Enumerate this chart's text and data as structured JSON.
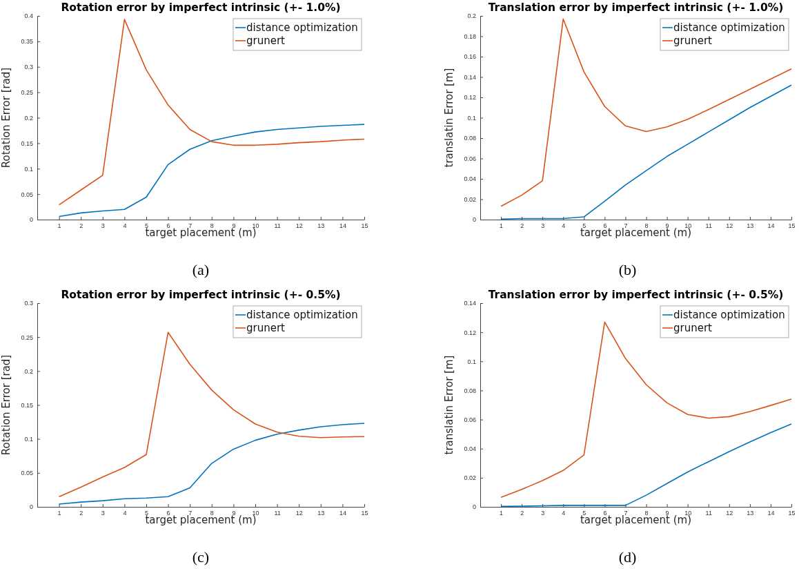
{
  "chart_data": [
    {
      "type": "line",
      "title": "Rotation error by imperfect intrinsic (+- 1.0%)",
      "xlabel": "target placement (m)",
      "ylabel": "Rotation Error [rad]",
      "annotations": [
        "(a)"
      ],
      "legend": "top right",
      "xlim": [
        0,
        15
      ],
      "xticks": [
        1,
        2,
        3,
        4,
        5,
        6,
        7,
        8,
        9,
        10,
        11,
        12,
        13,
        14,
        15
      ],
      "ylim": [
        0,
        0.4
      ],
      "yticks": [
        0,
        0.05,
        0.1,
        0.15,
        0.2,
        0.25,
        0.3,
        0.35,
        0.4
      ],
      "x": [
        1,
        2,
        3,
        4,
        5,
        6,
        7,
        8,
        9,
        10,
        11,
        12,
        13,
        14,
        15
      ],
      "series": [
        {
          "name": "distance optimization",
          "color": "#0072bd",
          "values": [
            0.006,
            0.013,
            0.017,
            0.02,
            0.044,
            0.108,
            0.138,
            0.155,
            0.164,
            0.172,
            0.177,
            0.18,
            0.183,
            0.185,
            0.187
          ]
        },
        {
          "name": "grunert",
          "color": "#d95319",
          "values": [
            0.029,
            0.058,
            0.087,
            0.393,
            0.294,
            0.225,
            0.177,
            0.153,
            0.146,
            0.146,
            0.148,
            0.151,
            0.153,
            0.156,
            0.158
          ]
        }
      ]
    },
    {
      "type": "line",
      "title": "Translation error by imperfect intrinsic (+- 1.0%)",
      "xlabel": "target placement (m)",
      "ylabel": "translatin Error [m]",
      "annotations": [
        "(b)"
      ],
      "legend": "top right",
      "xlim": [
        0,
        15
      ],
      "xticks": [
        1,
        2,
        3,
        4,
        5,
        6,
        7,
        8,
        9,
        10,
        11,
        12,
        13,
        14,
        15
      ],
      "ylim": [
        0,
        0.2
      ],
      "yticks": [
        0,
        0.02,
        0.04,
        0.06,
        0.08,
        0.1,
        0.12,
        0.14,
        0.16,
        0.18,
        0.2
      ],
      "x": [
        1,
        2,
        3,
        4,
        5,
        6,
        7,
        8,
        9,
        10,
        11,
        12,
        13,
        14,
        15
      ],
      "series": [
        {
          "name": "distance optimization",
          "color": "#0072bd",
          "values": [
            0.0005,
            0.001,
            0.001,
            0.001,
            0.0027,
            0.018,
            0.034,
            0.048,
            0.062,
            0.074,
            0.086,
            0.098,
            0.11,
            0.121,
            0.132
          ]
        },
        {
          "name": "grunert",
          "color": "#d95319",
          "values": [
            0.013,
            0.024,
            0.038,
            0.197,
            0.145,
            0.111,
            0.092,
            0.0865,
            0.091,
            0.0985,
            0.108,
            0.118,
            0.128,
            0.138,
            0.148
          ]
        }
      ]
    },
    {
      "type": "line",
      "title": "Rotation error by imperfect intrinsic (+- 0.5%)",
      "xlabel": "target placement (m)",
      "ylabel": "Rotation Error [rad]",
      "annotations": [
        "(c)"
      ],
      "legend": "top right",
      "xlim": [
        0,
        15
      ],
      "xticks": [
        1,
        2,
        3,
        4,
        5,
        6,
        7,
        8,
        9,
        10,
        11,
        12,
        13,
        14,
        15
      ],
      "ylim": [
        0,
        0.3
      ],
      "yticks": [
        0,
        0.05,
        0.1,
        0.15,
        0.2,
        0.25,
        0.3
      ],
      "x": [
        1,
        2,
        3,
        4,
        5,
        6,
        7,
        8,
        9,
        10,
        11,
        12,
        13,
        14,
        15
      ],
      "series": [
        {
          "name": "distance optimization",
          "color": "#0072bd",
          "values": [
            0.004,
            0.007,
            0.009,
            0.012,
            0.013,
            0.015,
            0.028,
            0.064,
            0.085,
            0.098,
            0.107,
            0.113,
            0.118,
            0.121,
            0.123
          ]
        },
        {
          "name": "grunert",
          "color": "#d95319",
          "values": [
            0.015,
            0.029,
            0.044,
            0.058,
            0.077,
            0.257,
            0.21,
            0.172,
            0.143,
            0.122,
            0.11,
            0.104,
            0.102,
            0.103,
            0.1035
          ]
        }
      ]
    },
    {
      "type": "line",
      "title": "Translation error by imperfect intrinsic (+- 0.5%)",
      "xlabel": "target placement (m)",
      "ylabel": "translatin Error [m]",
      "annotations": [
        "(d)"
      ],
      "legend": "top right",
      "xlim": [
        0,
        15
      ],
      "xticks": [
        1,
        2,
        3,
        4,
        5,
        6,
        7,
        8,
        9,
        10,
        11,
        12,
        13,
        14,
        15
      ],
      "ylim": [
        0,
        0.14
      ],
      "yticks": [
        0,
        0.02,
        0.04,
        0.06,
        0.08,
        0.1,
        0.12,
        0.14
      ],
      "x": [
        1,
        2,
        3,
        4,
        5,
        6,
        7,
        8,
        9,
        10,
        11,
        12,
        13,
        14,
        15
      ],
      "series": [
        {
          "name": "distance optimization",
          "color": "#0072bd",
          "values": [
            0.0003,
            0.0005,
            0.0007,
            0.001,
            0.001,
            0.001,
            0.001,
            0.008,
            0.016,
            0.024,
            0.031,
            0.038,
            0.0446,
            0.051,
            0.057
          ]
        },
        {
          "name": "grunert",
          "color": "#d95319",
          "values": [
            0.0065,
            0.012,
            0.018,
            0.025,
            0.0357,
            0.127,
            0.102,
            0.084,
            0.0715,
            0.0635,
            0.061,
            0.062,
            0.0655,
            0.0697,
            0.074
          ]
        }
      ]
    }
  ]
}
